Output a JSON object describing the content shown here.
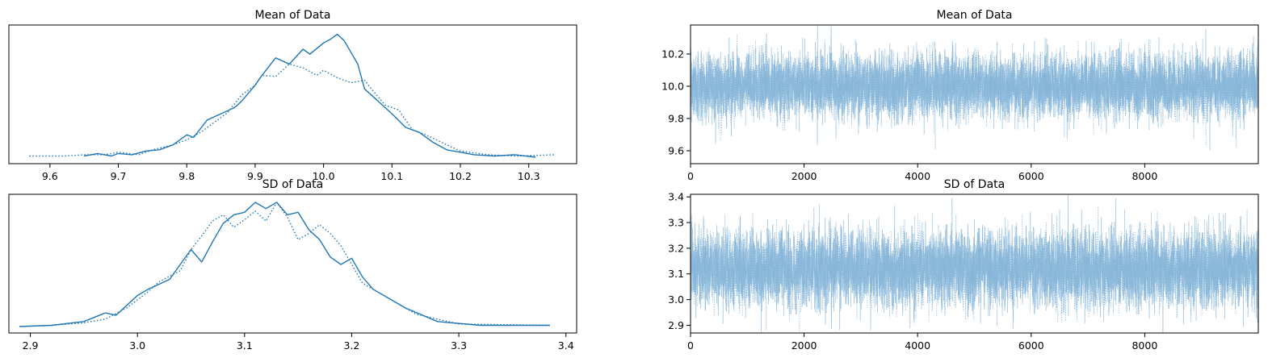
{
  "chart_data": [
    {
      "type": "line",
      "title": "Mean of Data",
      "xlabel": "",
      "ylabel": "",
      "xlim": [
        9.54,
        10.37
      ],
      "x_ticks": [
        9.6,
        9.7,
        9.8,
        9.9,
        10.0,
        10.1,
        10.2,
        10.3
      ],
      "x_tick_labels": [
        "9.6",
        "9.7",
        "9.8",
        "9.9",
        "10.0",
        "10.1",
        "10.2",
        "10.3"
      ],
      "y_ticks_shown": false,
      "grid": false,
      "series": [
        {
          "style": "solid",
          "x": [
            9.65,
            9.67,
            9.69,
            9.7,
            9.72,
            9.74,
            9.76,
            9.78,
            9.8,
            9.81,
            9.83,
            9.85,
            9.87,
            9.88,
            9.9,
            9.91,
            9.93,
            9.95,
            9.97,
            9.98,
            10.0,
            10.01,
            10.02,
            10.03,
            10.05,
            10.06,
            10.08,
            10.1,
            10.12,
            10.14,
            10.16,
            10.18,
            10.2,
            10.22,
            10.25,
            10.28,
            10.31
          ],
          "y": [
            0.01,
            0.03,
            0.01,
            0.03,
            0.02,
            0.05,
            0.06,
            0.1,
            0.18,
            0.16,
            0.3,
            0.35,
            0.4,
            0.45,
            0.58,
            0.66,
            0.8,
            0.75,
            0.87,
            0.83,
            0.92,
            0.95,
            0.99,
            0.94,
            0.75,
            0.55,
            0.45,
            0.35,
            0.24,
            0.2,
            0.12,
            0.06,
            0.04,
            0.02,
            0.01,
            0.02,
            0.0
          ]
        },
        {
          "style": "dotted",
          "x": [
            9.57,
            9.62,
            9.65,
            9.68,
            9.7,
            9.73,
            9.75,
            9.78,
            9.8,
            9.82,
            9.84,
            9.86,
            9.88,
            9.9,
            9.91,
            9.93,
            9.95,
            9.97,
            9.99,
            10.0,
            10.02,
            10.04,
            10.06,
            10.07,
            10.09,
            10.11,
            10.13,
            10.15,
            10.18,
            10.2,
            10.24,
            10.28,
            10.34
          ],
          "y": [
            0.01,
            0.01,
            0.02,
            0.02,
            0.04,
            0.02,
            0.06,
            0.1,
            0.14,
            0.2,
            0.28,
            0.36,
            0.5,
            0.58,
            0.66,
            0.65,
            0.75,
            0.72,
            0.66,
            0.7,
            0.64,
            0.6,
            0.62,
            0.55,
            0.42,
            0.38,
            0.22,
            0.18,
            0.1,
            0.05,
            0.02,
            0.01,
            0.02
          ]
        }
      ]
    },
    {
      "type": "line",
      "title": "Mean of Data",
      "xlabel": "",
      "ylabel": "",
      "xlim": [
        0,
        10000
      ],
      "ylim": [
        9.52,
        10.38
      ],
      "x_ticks": [
        0,
        2000,
        4000,
        6000,
        8000
      ],
      "x_tick_labels": [
        "0",
        "2000",
        "4000",
        "6000",
        "8000"
      ],
      "y_ticks": [
        9.6,
        9.8,
        10.0,
        10.2
      ],
      "y_tick_labels": [
        "9.6",
        "9.8",
        "10.0",
        "10.2"
      ],
      "grid": false,
      "series_style": [
        "solid",
        "dotted"
      ],
      "color": "#7eb0d5",
      "trace_center": 10.0,
      "trace_sd": 0.1,
      "samples": 10000
    },
    {
      "type": "line",
      "title": "SD of Data",
      "xlabel": "",
      "ylabel": "",
      "xlim": [
        2.88,
        3.41
      ],
      "x_ticks": [
        2.9,
        3.0,
        3.1,
        3.2,
        3.3,
        3.4
      ],
      "x_tick_labels": [
        "2.9",
        "3.0",
        "3.1",
        "3.2",
        "3.3",
        "3.4"
      ],
      "y_ticks_shown": false,
      "grid": false,
      "series": [
        {
          "style": "solid",
          "x": [
            2.89,
            2.92,
            2.95,
            2.97,
            2.98,
            3.0,
            3.01,
            3.03,
            3.04,
            3.05,
            3.06,
            3.07,
            3.08,
            3.09,
            3.1,
            3.11,
            3.12,
            3.13,
            3.14,
            3.15,
            3.16,
            3.17,
            3.18,
            3.19,
            3.2,
            3.21,
            3.22,
            3.25,
            3.28,
            3.32,
            3.385
          ],
          "y": [
            0.0,
            0.01,
            0.04,
            0.11,
            0.09,
            0.25,
            0.3,
            0.38,
            0.5,
            0.62,
            0.52,
            0.68,
            0.83,
            0.9,
            0.92,
            1.0,
            0.95,
            1.0,
            0.9,
            0.92,
            0.78,
            0.7,
            0.56,
            0.5,
            0.55,
            0.4,
            0.3,
            0.15,
            0.04,
            0.01,
            0.01
          ]
        },
        {
          "style": "dotted",
          "x": [
            2.89,
            2.92,
            2.95,
            2.97,
            2.99,
            3.01,
            3.02,
            3.04,
            3.05,
            3.06,
            3.07,
            3.08,
            3.09,
            3.1,
            3.11,
            3.12,
            3.13,
            3.14,
            3.15,
            3.16,
            3.17,
            3.18,
            3.19,
            3.2,
            3.21,
            3.23,
            3.26,
            3.3,
            3.385
          ],
          "y": [
            0.0,
            0.01,
            0.03,
            0.06,
            0.15,
            0.28,
            0.36,
            0.45,
            0.62,
            0.73,
            0.85,
            0.9,
            0.8,
            0.86,
            0.93,
            0.85,
            1.0,
            0.88,
            0.7,
            0.75,
            0.82,
            0.75,
            0.65,
            0.5,
            0.35,
            0.25,
            0.1,
            0.02,
            0.01
          ]
        }
      ]
    },
    {
      "type": "line",
      "title": "SD of Data",
      "xlabel": "",
      "ylabel": "",
      "xlim": [
        0,
        10000
      ],
      "ylim": [
        2.87,
        3.41
      ],
      "x_ticks": [
        0,
        2000,
        4000,
        6000,
        8000
      ],
      "x_tick_labels": [
        "0",
        "2000",
        "4000",
        "6000",
        "8000"
      ],
      "y_ticks": [
        2.9,
        3.0,
        3.1,
        3.2,
        3.3,
        3.4
      ],
      "y_tick_labels": [
        "2.9",
        "3.0",
        "3.1",
        "3.2",
        "3.3",
        "3.4"
      ],
      "grid": false,
      "series_style": [
        "solid",
        "dotted"
      ],
      "color": "#7eb0d5",
      "trace_center": 3.12,
      "trace_sd": 0.075,
      "samples": 10000
    }
  ],
  "colors": {
    "line": "#1f77b4",
    "trace": "#7eb0d5",
    "axis": "#000000"
  }
}
